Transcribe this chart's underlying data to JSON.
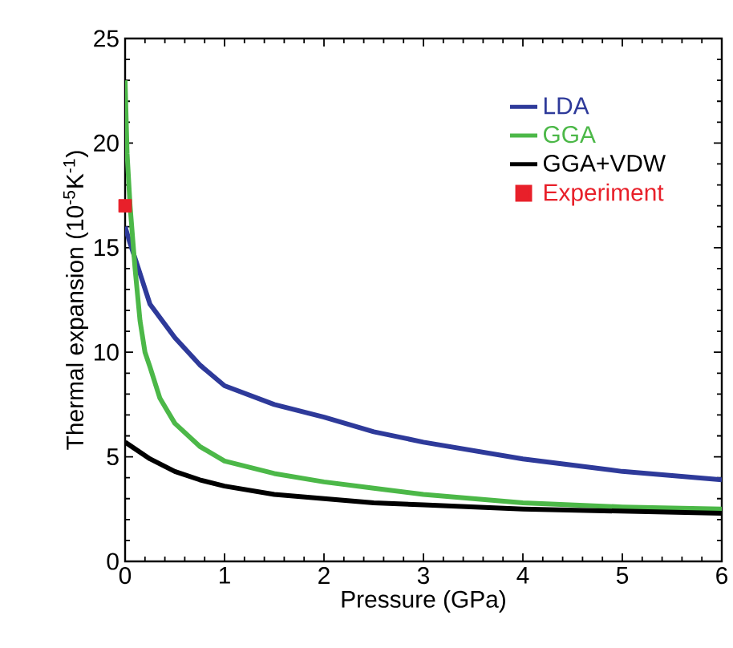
{
  "chart_data": {
    "type": "line",
    "xlabel": "Pressure (GPa)",
    "ylabel": "Thermal expansion (10$^{-5}$K$^{-1}$)",
    "xlim": [
      0,
      6
    ],
    "ylim": [
      0,
      25
    ],
    "xticks": [
      0,
      1,
      2,
      3,
      4,
      5,
      6
    ],
    "yticks": [
      0,
      5,
      10,
      15,
      20,
      25
    ],
    "legend": "top right",
    "grid": false,
    "marker": "none",
    "line_style": "solid",
    "series": [
      {
        "name": "LDA",
        "color": "#2e3a9a",
        "x": [
          0,
          0.05,
          0.1,
          0.25,
          0.5,
          0.75,
          1,
          1.5,
          2,
          2.5,
          3,
          3.5,
          4,
          4.5,
          5,
          5.5,
          6
        ],
        "values": [
          16,
          15.2,
          14.5,
          12.3,
          10.7,
          9.4,
          8.4,
          7.5,
          6.9,
          6.2,
          5.7,
          5.3,
          4.9,
          4.6,
          4.3,
          4.1,
          3.9
        ]
      },
      {
        "name": "GGA",
        "color": "#4cb848",
        "x": [
          0,
          0.02,
          0.05,
          0.1,
          0.15,
          0.2,
          0.25,
          0.35,
          0.5,
          0.75,
          1,
          1.5,
          2,
          2.5,
          3,
          4,
          5,
          6
        ],
        "values": [
          23,
          19.5,
          17,
          14,
          11.5,
          10,
          9.3,
          7.8,
          6.6,
          5.5,
          4.8,
          4.2,
          3.8,
          3.5,
          3.2,
          2.8,
          2.6,
          2.5
        ]
      },
      {
        "name": "GGA+VDW",
        "color": "#000000",
        "x": [
          0,
          0.25,
          0.5,
          0.75,
          1,
          1.5,
          2,
          2.5,
          3,
          4,
          5,
          6
        ],
        "values": [
          5.7,
          4.9,
          4.3,
          3.9,
          3.6,
          3.2,
          3.0,
          2.8,
          2.7,
          2.5,
          2.4,
          2.3
        ]
      },
      {
        "name": "Experiment",
        "type": "scatter",
        "marker": "square",
        "color": "#e8202a",
        "x": [
          0
        ],
        "values": [
          17
        ]
      }
    ]
  }
}
